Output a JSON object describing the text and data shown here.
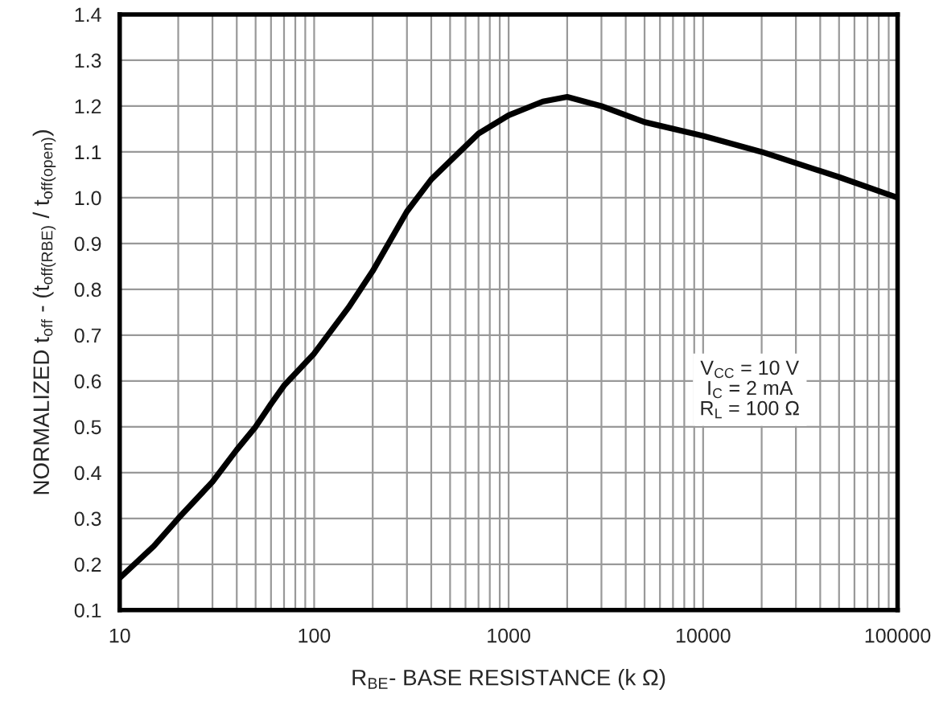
{
  "chart_data": {
    "type": "line",
    "xlabel": "R$_{BE}$- BASE RESISTANCE (k Ω)",
    "ylabel": "NORMALIZED t$_{off}$ - (t$_{off(RBE)}$ / t$_{off(open)}$)",
    "annotations": [
      "V$_{CC}$ = 10 V",
      "I$_{C}$ = 2 mA",
      "R$_{L}$ = 100 Ω"
    ],
    "x": [
      10,
      15,
      20,
      30,
      40,
      50,
      60,
      70,
      100,
      150,
      200,
      300,
      400,
      500,
      700,
      1000,
      1500,
      2000,
      3000,
      5000,
      10000,
      20000,
      50000,
      100000
    ],
    "series": [
      {
        "color": "#000000",
        "values": [
          0.17,
          0.24,
          0.3,
          0.38,
          0.45,
          0.5,
          0.55,
          0.59,
          0.66,
          0.76,
          0.84,
          0.97,
          1.04,
          1.08,
          1.14,
          1.18,
          1.21,
          1.22,
          1.2,
          1.165,
          1.135,
          1.1,
          1.045,
          1.0
        ]
      }
    ],
    "log": "x",
    "xlim": [
      10,
      100000
    ],
    "xticks": [
      10,
      100,
      1000,
      10000,
      100000
    ],
    "ylim": [
      0.1,
      1.4
    ],
    "yticks": [
      {
        "value": 0.1,
        "label": "0.1"
      },
      {
        "value": 0.2,
        "label": "0.2"
      },
      {
        "value": 0.3,
        "label": "0.3"
      },
      {
        "value": 0.4,
        "label": "0.4"
      },
      {
        "value": 0.5,
        "label": "0.5"
      },
      {
        "value": 0.6,
        "label": "0.6"
      },
      {
        "value": 0.7,
        "label": "0.7"
      },
      {
        "value": 0.8,
        "label": "0.8"
      },
      {
        "value": 0.9,
        "label": "0.9"
      },
      {
        "value": 1.0,
        "label": "1.0"
      },
      {
        "value": 1.1,
        "label": "1.1"
      },
      {
        "value": 1.2,
        "label": "1.2"
      },
      {
        "value": 1.3,
        "label": "1.3"
      },
      {
        "value": 1.4,
        "label": "1.4"
      }
    ],
    "grid": true
  }
}
